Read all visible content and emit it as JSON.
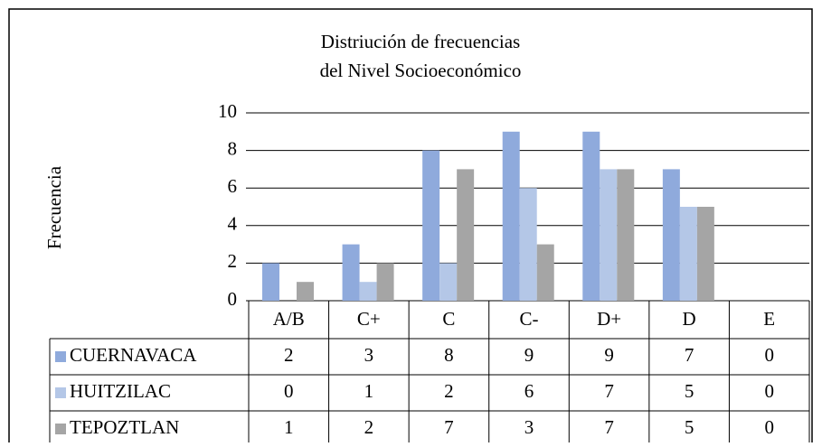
{
  "chart_data": {
    "type": "bar",
    "title": [
      "Distriución de frecuencias",
      "del Nivel Socioeconómico"
    ],
    "y_label": "Frecuencia",
    "categories": [
      "A/B",
      "C+",
      "C",
      "C-",
      "D+",
      "D",
      "E"
    ],
    "series": [
      {
        "name": "CUERNAVACA",
        "color": "#8faadc",
        "values": [
          2,
          3,
          8,
          9,
          9,
          7,
          0
        ]
      },
      {
        "name": "HUITZILAC",
        "color": "#b4c7e7",
        "values": [
          0,
          1,
          2,
          6,
          7,
          5,
          0
        ]
      },
      {
        "name": "TEPOZTLAN",
        "color": "#a5a5a5",
        "values": [
          1,
          2,
          7,
          3,
          7,
          5,
          0
        ]
      }
    ],
    "ylim": [
      0,
      10
    ],
    "yticks": [
      0,
      2,
      4,
      6,
      8,
      10
    ],
    "grid": true
  }
}
